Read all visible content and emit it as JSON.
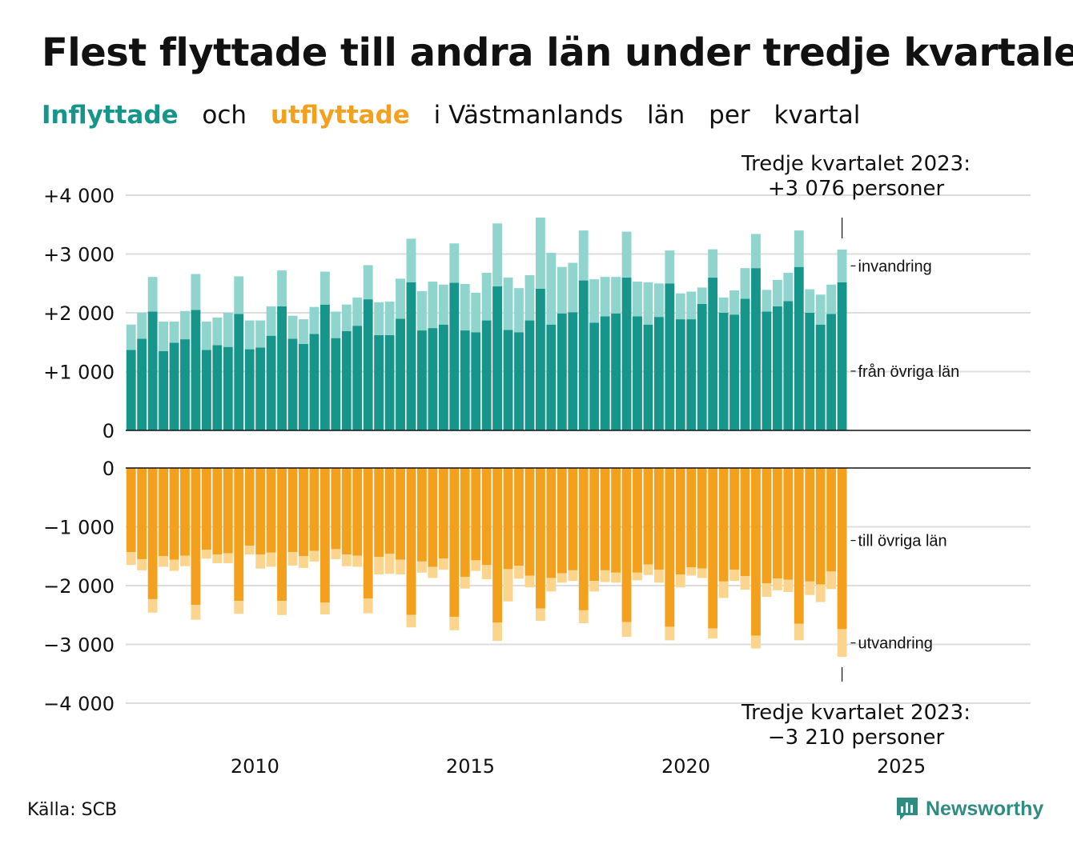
{
  "title": "Flest flyttade till andra län under tredje kvartalet",
  "subtitle": {
    "in_word": "Inflyttade",
    "and_word": "och",
    "out_word": "utflyttade",
    "rest": [
      "i Västmanlands",
      "län",
      "per",
      "kvartal"
    ]
  },
  "annotation_top": {
    "line1": "Tredje kvartalet 2023:",
    "line2": "+3 076 personer"
  },
  "annotation_bottom": {
    "line1": "Tredje kvartalet 2023:",
    "line2": "−3 210 personer"
  },
  "source": "Källa: SCB",
  "logo": {
    "name": "Newsworthy",
    "icon": "newsworthy-chart-icon"
  },
  "colors": {
    "in_domestic": "#16958a",
    "in_immigration": "#8fd5cd",
    "out_domestic": "#f3a01d",
    "out_emigration": "#fbd58e",
    "logo": "#2e8c80"
  },
  "chart_data": {
    "type": "bar",
    "stacked": true,
    "x_start": "2007 Q1",
    "x_ticks": [
      "2010",
      "2015",
      "2020",
      "2025"
    ],
    "x_range": [
      2007.0,
      2028.0
    ],
    "top_panel": {
      "yticks": [
        "0",
        "+1 000",
        "+2 000",
        "+3 000",
        "+4 000"
      ],
      "ylim": [
        0,
        4000
      ],
      "series": [
        {
          "name": "från övriga län",
          "values": [
            1370,
            1560,
            2020,
            1350,
            1490,
            1550,
            2050,
            1370,
            1450,
            1420,
            1980,
            1380,
            1410,
            1610,
            2110,
            1560,
            1470,
            1640,
            2140,
            1570,
            1690,
            1780,
            2230,
            1620,
            1620,
            1900,
            2520,
            1700,
            1740,
            1800,
            2510,
            1700,
            1670,
            1870,
            2450,
            1710,
            1670,
            1870,
            2410,
            1800,
            1990,
            2010,
            2550,
            1830,
            1940,
            1990,
            2600,
            1940,
            1800,
            1930,
            2500,
            1890,
            1890,
            2150,
            2600,
            2000,
            1970,
            2240,
            2760,
            2020,
            2110,
            2200,
            2780,
            2000,
            1800,
            1980,
            2520
          ]
        },
        {
          "name": "invandring",
          "values": [
            430,
            440,
            590,
            500,
            360,
            480,
            610,
            480,
            470,
            580,
            640,
            490,
            460,
            500,
            610,
            390,
            420,
            460,
            560,
            450,
            450,
            480,
            580,
            560,
            570,
            680,
            740,
            670,
            790,
            680,
            670,
            790,
            670,
            810,
            1070,
            890,
            750,
            770,
            1210,
            1220,
            790,
            840,
            850,
            740,
            670,
            620,
            780,
            590,
            720,
            570,
            560,
            440,
            470,
            280,
            480,
            260,
            410,
            520,
            580,
            370,
            450,
            480,
            620,
            400,
            510,
            500,
            556
          ]
        }
      ],
      "labels": [
        "invandring",
        "från övriga län"
      ]
    },
    "bottom_panel": {
      "yticks": [
        "0",
        "−1 000",
        "−2 000",
        "−3 000",
        "−4 000"
      ],
      "ylim": [
        -4000,
        0
      ],
      "series": [
        {
          "name": "till övriga län",
          "values": [
            -1430,
            -1550,
            -2230,
            -1500,
            -1560,
            -1490,
            -2330,
            -1390,
            -1470,
            -1450,
            -2260,
            -1320,
            -1470,
            -1440,
            -2260,
            -1430,
            -1500,
            -1410,
            -2290,
            -1380,
            -1470,
            -1490,
            -2220,
            -1510,
            -1460,
            -1560,
            -2500,
            -1590,
            -1680,
            -1540,
            -2530,
            -1850,
            -1570,
            -1650,
            -2630,
            -1720,
            -1660,
            -1830,
            -2390,
            -1870,
            -1790,
            -1740,
            -2420,
            -1920,
            -1740,
            -1780,
            -2620,
            -1780,
            -1640,
            -1730,
            -2700,
            -1810,
            -1690,
            -1710,
            -2730,
            -1930,
            -1730,
            -1840,
            -2850,
            -1960,
            -1880,
            -1900,
            -2650,
            -1930,
            -1980,
            -1760,
            -2740
          ]
        },
        {
          "name": "utvandring",
          "values": [
            -220,
            -190,
            -230,
            -180,
            -190,
            -180,
            -250,
            -150,
            -150,
            -170,
            -220,
            -150,
            -240,
            -240,
            -240,
            -230,
            -200,
            -180,
            -200,
            -170,
            -200,
            -190,
            -250,
            -300,
            -340,
            -250,
            -210,
            -190,
            -190,
            -190,
            -230,
            -200,
            -180,
            -240,
            -310,
            -550,
            -220,
            -200,
            -210,
            -230,
            -160,
            -180,
            -220,
            -180,
            -200,
            -170,
            -250,
            -130,
            -180,
            -220,
            -230,
            -220,
            -140,
            -160,
            -170,
            -280,
            -190,
            -230,
            -220,
            -230,
            -200,
            -210,
            -280,
            -230,
            -300,
            -300,
            -470
          ]
        }
      ],
      "labels": [
        "till övriga län",
        "utvandring"
      ]
    }
  }
}
